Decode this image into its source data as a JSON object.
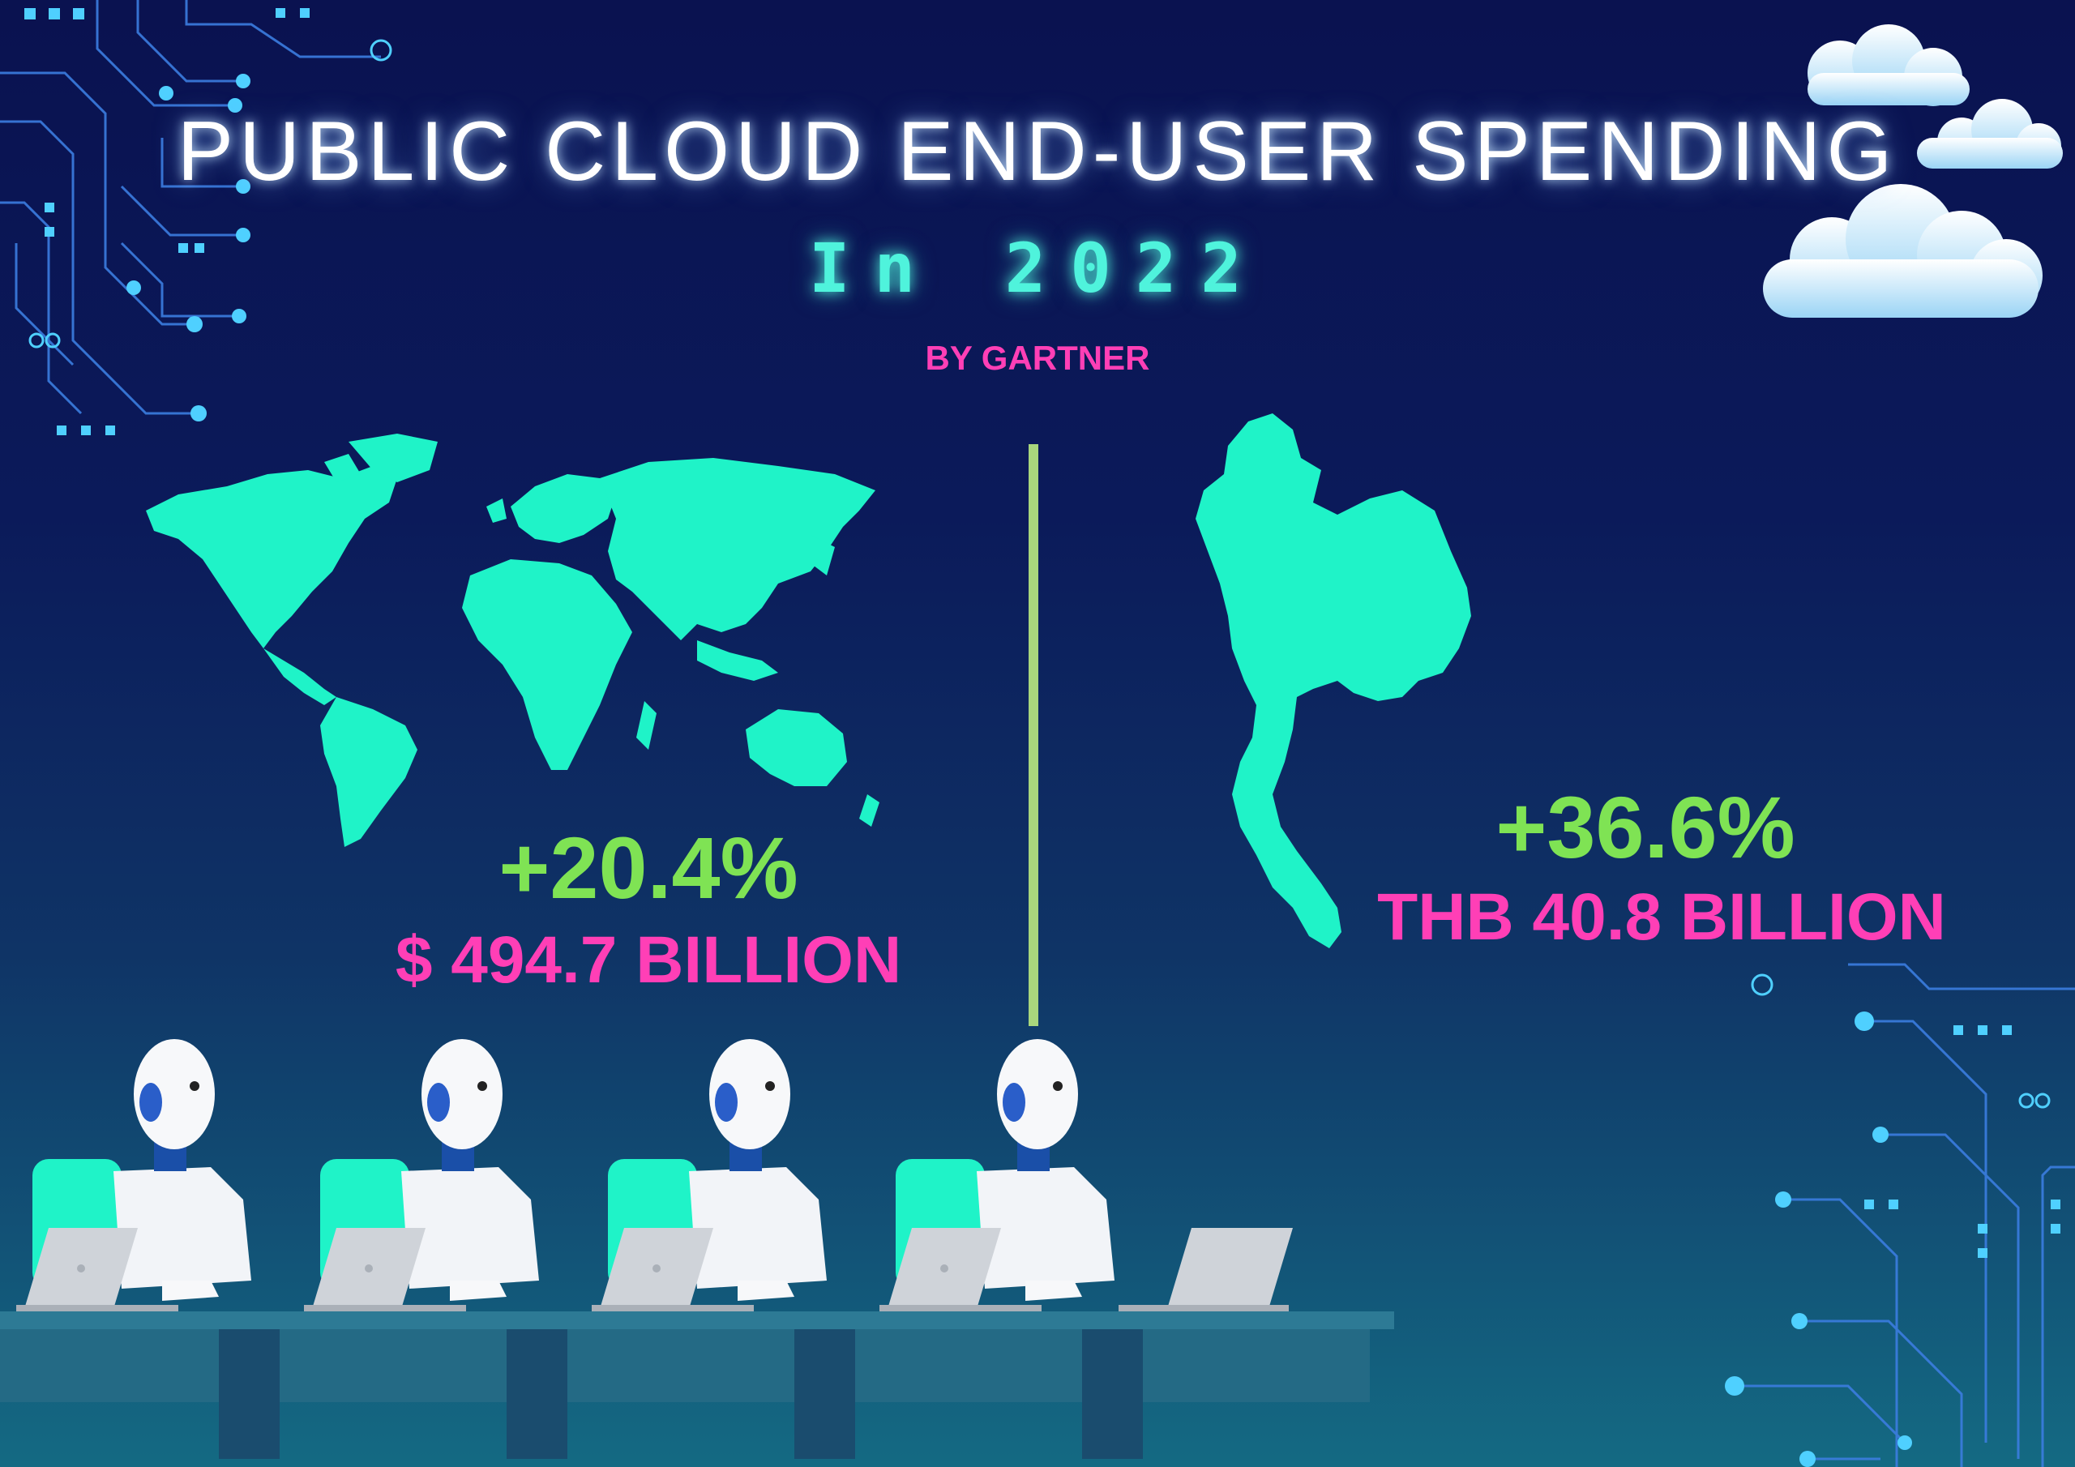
{
  "header": {
    "title": "PUBLIC CLOUD END-USER SPENDING",
    "subtitle": "In 2022",
    "source": "BY GARTNER"
  },
  "stats": {
    "world": {
      "growth": "+20.4%",
      "amount": "$ 494.7 BILLION"
    },
    "thailand": {
      "growth": "+36.6%",
      "amount": "THB 40.8 BILLION"
    }
  },
  "colors": {
    "background": "#0b1a5a",
    "map": "#1ff3c8",
    "growth": "#7fe354",
    "amount": "#ff3fb6",
    "divider": "#a9d67d",
    "glow_text": "#4ff3dc"
  },
  "icons": [
    "world-map-icon",
    "thailand-map-icon",
    "cloud-icon",
    "robot-icon",
    "laptop-icon",
    "circuit-icon"
  ]
}
